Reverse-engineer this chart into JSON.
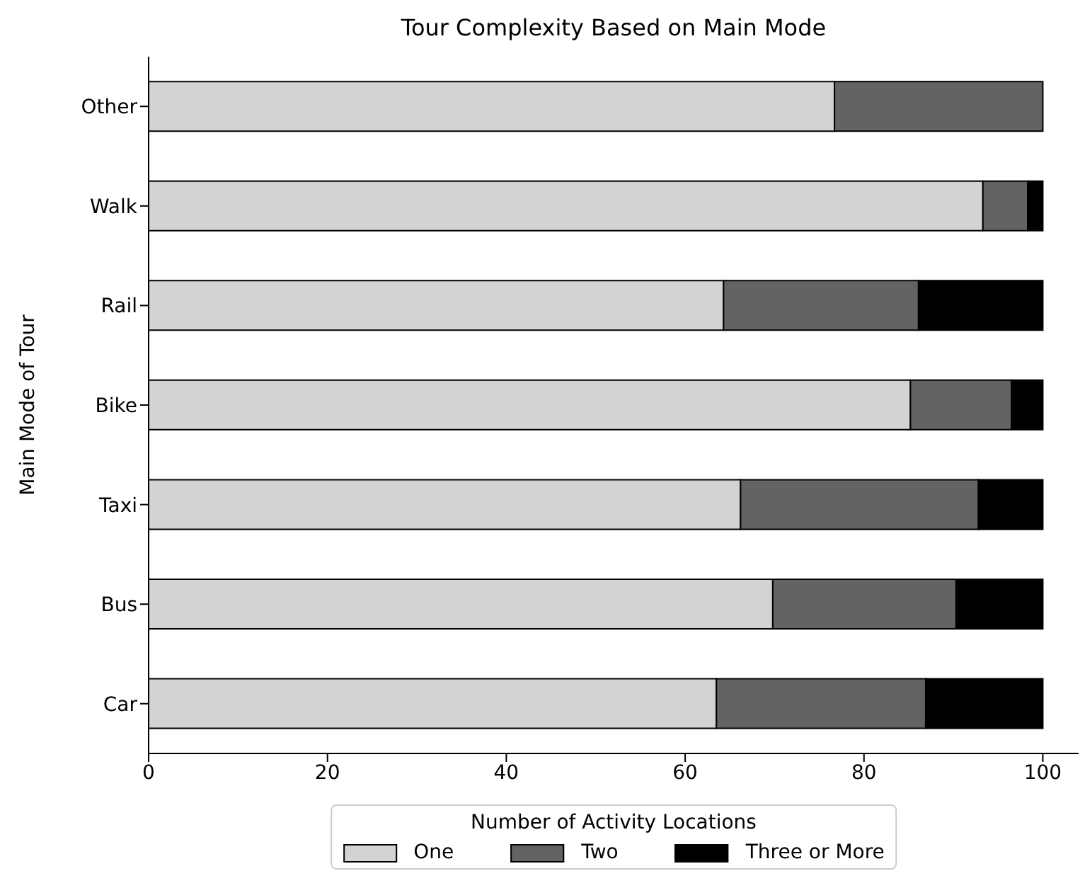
{
  "chart_data": {
    "type": "bar",
    "title": "Tour Complexity Based on Main Mode",
    "ylabel": "Main Mode of Tour",
    "legend_title": "Number of Activity Locations",
    "categories": [
      "Other",
      "Walk",
      "Rail",
      "Bike",
      "Taxi",
      "Bus",
      "Car"
    ],
    "orientation": "horizontal",
    "stacked": true,
    "series": [
      {
        "name": "One",
        "color": "#d3d3d3",
        "values": [
          76.7,
          93.3,
          64.3,
          85.2,
          66.2,
          69.8,
          63.5
        ]
      },
      {
        "name": "Two",
        "color": "#636363",
        "values": [
          23.3,
          5.0,
          21.8,
          11.3,
          26.6,
          20.5,
          23.4
        ]
      },
      {
        "name": "Three or More",
        "color": "#000000",
        "values": [
          0,
          1.7,
          13.9,
          3.5,
          7.2,
          9.7,
          13.1
        ]
      }
    ],
    "xlim": [
      0,
      104
    ],
    "xticks": [
      0,
      20,
      40,
      60,
      80,
      100
    ],
    "grid": false,
    "legend": "bottom"
  }
}
